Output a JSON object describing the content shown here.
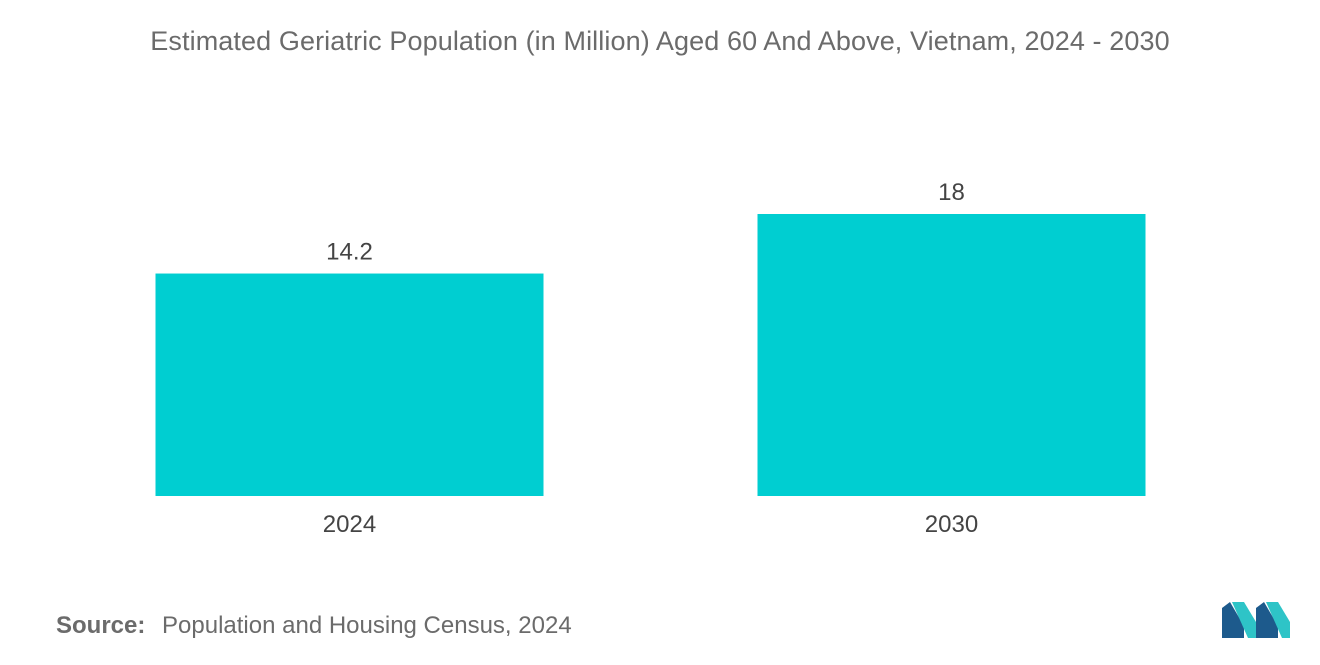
{
  "chart_data": {
    "type": "bar",
    "title": "Estimated Geriatric Population (in Million) Aged 60 And Above, Vietnam, 2024 - 2030",
    "categories": [
      "2024",
      "2030"
    ],
    "values": [
      14.2,
      18
    ],
    "value_labels": [
      "14.2",
      "18"
    ],
    "xlabel": "",
    "ylabel": "",
    "ylim": [
      0,
      18
    ],
    "grid": false,
    "bar_color": "#00ced1"
  },
  "source": {
    "label": "Source:",
    "text": "Population and Housing Census, 2024"
  },
  "logo": {
    "icon": "mordor-intelligence-logo-icon",
    "colors": [
      "#1d5a8c",
      "#2ec4c7"
    ]
  },
  "colors": {
    "title": "#6b6b6b",
    "axis_text": "#555555",
    "bar": "#00ced1"
  }
}
